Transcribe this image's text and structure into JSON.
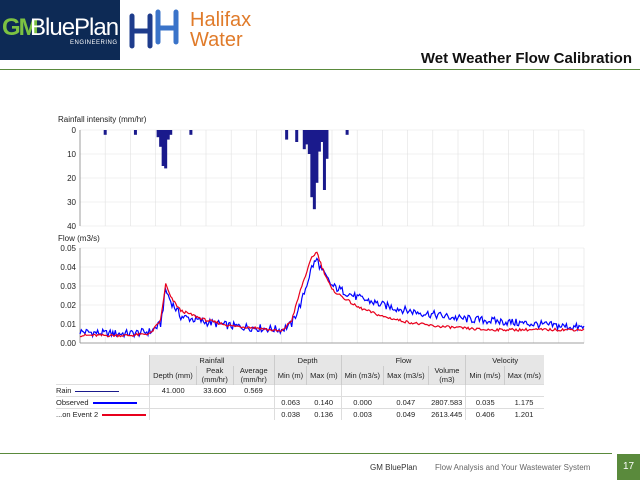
{
  "header": {
    "logo_gm": "GM",
    "logo_blueplan": "BluePlan",
    "logo_engineering": "ENGINEERING",
    "logo_halifax_1": "Halifax",
    "logo_halifax_2": "Water",
    "title": "Wet Weather Flow Calibration"
  },
  "footer": {
    "brand": "GM BluePlan",
    "text": "Flow Analysis and Your Wastewater System",
    "page": "17"
  },
  "colors": {
    "rain": "#1a1a8c",
    "observed": "#0000ff",
    "modelled": "#e8001c",
    "accent": "#5a8a3c"
  },
  "chart_data": [
    {
      "type": "bar",
      "ylabel": "Rainfall intensity (mm/hr)",
      "ylim": [
        40,
        0
      ],
      "yticks": [
        "0",
        "10",
        "20",
        "30",
        "40"
      ],
      "grid": true,
      "series": [
        {
          "name": "Rain",
          "x": [
            0.05,
            0.11,
            0.155,
            0.16,
            0.165,
            0.17,
            0.175,
            0.18,
            0.22,
            0.41,
            0.43,
            0.445,
            0.45,
            0.455,
            0.46,
            0.465,
            0.47,
            0.475,
            0.48,
            0.485,
            0.49,
            0.53
          ],
          "values": [
            2,
            2,
            3,
            7,
            15,
            16,
            4,
            2,
            2,
            4,
            5,
            8,
            6,
            10,
            28,
            33,
            22,
            9,
            5,
            25,
            12,
            2
          ]
        }
      ]
    },
    {
      "type": "line",
      "ylabel": "Flow (m3/s)",
      "ylim": [
        0,
        0.05
      ],
      "yticks": [
        "0.00",
        "0.01",
        "0.02",
        "0.03",
        "0.04",
        "0.05"
      ],
      "grid": true,
      "series": [
        {
          "name": "Observed",
          "x": [
            0,
            0.05,
            0.1,
            0.14,
            0.16,
            0.17,
            0.18,
            0.2,
            0.25,
            0.3,
            0.35,
            0.4,
            0.42,
            0.44,
            0.46,
            0.47,
            0.48,
            0.5,
            0.55,
            0.6,
            0.65,
            0.7,
            0.75,
            0.8,
            0.85,
            0.9,
            0.95,
            1.0
          ],
          "values": [
            0.006,
            0.005,
            0.005,
            0.006,
            0.01,
            0.028,
            0.022,
            0.014,
            0.011,
            0.009,
            0.008,
            0.007,
            0.01,
            0.022,
            0.04,
            0.044,
            0.038,
            0.03,
            0.024,
            0.02,
            0.017,
            0.015,
            0.013,
            0.012,
            0.011,
            0.01,
            0.009,
            0.008
          ]
        },
        {
          "name": "...on Event 2",
          "x": [
            0,
            0.05,
            0.1,
            0.14,
            0.16,
            0.17,
            0.18,
            0.2,
            0.25,
            0.3,
            0.35,
            0.4,
            0.42,
            0.44,
            0.46,
            0.47,
            0.48,
            0.5,
            0.55,
            0.6,
            0.65,
            0.7,
            0.75,
            0.8,
            0.85,
            0.9,
            0.95,
            1.0
          ],
          "values": [
            0.004,
            0.004,
            0.004,
            0.005,
            0.012,
            0.031,
            0.024,
            0.017,
            0.012,
            0.009,
            0.008,
            0.006,
            0.012,
            0.03,
            0.045,
            0.048,
            0.04,
            0.028,
            0.019,
            0.014,
            0.011,
            0.009,
            0.008,
            0.007,
            0.007,
            0.007,
            0.007,
            0.007
          ]
        }
      ]
    }
  ],
  "table": {
    "groups": [
      "Rainfall",
      "Depth",
      "Flow",
      "Velocity"
    ],
    "columns": [
      "Depth (mm)",
      "Peak (mm/hr)",
      "Average (mm/hr)",
      "Min (m)",
      "Max (m)",
      "Min (m3/s)",
      "Max (m3/s)",
      "Volume (m3)",
      "Min (m/s)",
      "Max (m/s)"
    ],
    "rows": [
      {
        "label": "Rain",
        "cells": [
          "41.000",
          "33.600",
          "0.569",
          "",
          "",
          "",
          "",
          "",
          "",
          ""
        ]
      },
      {
        "label": "Observed",
        "cells": [
          "",
          "",
          "",
          "0.063",
          "0.140",
          "0.000",
          "0.047",
          "2807.583",
          "0.035",
          "1.175"
        ]
      },
      {
        "label": "...on Event 2",
        "cells": [
          "",
          "",
          "",
          "0.038",
          "0.136",
          "0.003",
          "0.049",
          "2613.445",
          "0.406",
          "1.201"
        ]
      }
    ]
  }
}
